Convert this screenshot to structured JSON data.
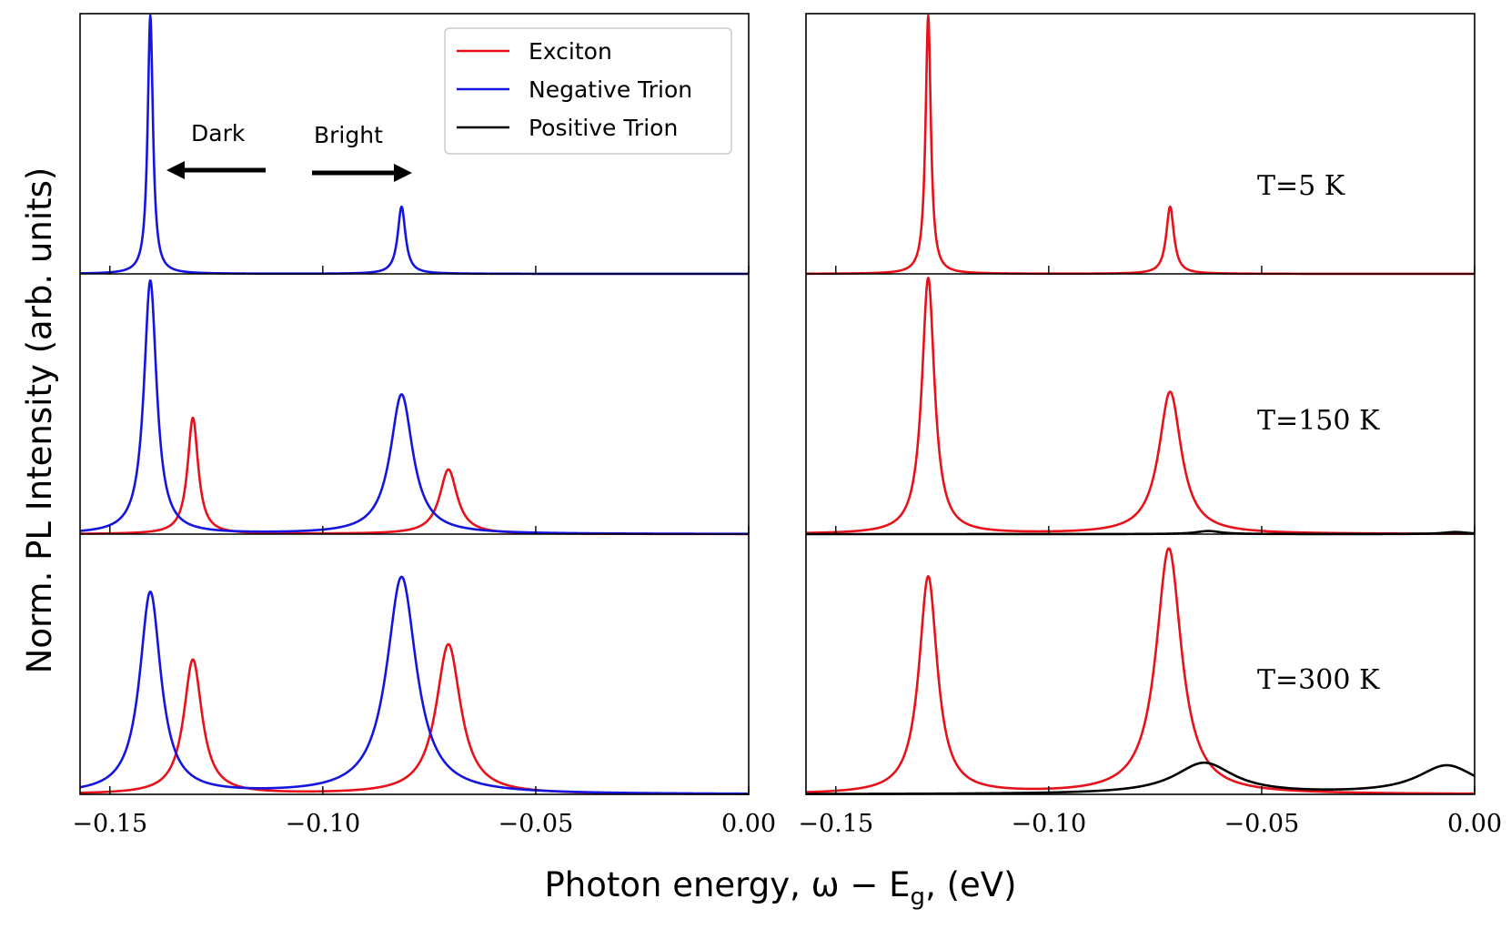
{
  "chart_data": {
    "type": "line",
    "xlabel": "Photon energy, ω − E",
    "xlabel_sub": "g",
    "xlabel_unit": ", (eV)",
    "ylabel": "Norm. PL Intensity (arb. units)",
    "xlim": [
      -0.157,
      0.0
    ],
    "x_ticks": [
      -0.15,
      -0.1,
      -0.05,
      0.0
    ],
    "x_tick_labels": [
      "−0.15",
      "−0.10",
      "−0.05",
      "0.00"
    ],
    "legend": {
      "position": "top-right of upper-left panel",
      "entries": [
        {
          "name": "Exciton",
          "color": "#e8111a"
        },
        {
          "name": "Negative Trion",
          "color": "#1515e0"
        },
        {
          "name": "Positive Trion",
          "color": "#000000"
        }
      ]
    },
    "annotations": [
      {
        "text": "Dark",
        "direction": "left"
      },
      {
        "text": "Bright",
        "direction": "right"
      }
    ],
    "temperatures": [
      {
        "label": "T=5 K"
      },
      {
        "label": "T=150 K"
      },
      {
        "label": "T=300 K"
      }
    ],
    "columns": [
      {
        "name": "left",
        "rows": [
          {
            "temperature": "T=5 K",
            "series": [
              {
                "name": "Negative Trion",
                "color": "#1515e0",
                "baseline": 0.0,
                "peaks": [
                  {
                    "x": -0.1405,
                    "amp": 1.0,
                    "gamma": 0.00075
                  },
                  {
                    "x": -0.0815,
                    "amp": 0.26,
                    "gamma": 0.0011
                  }
                ]
              }
            ]
          },
          {
            "temperature": "T=150 K",
            "series": [
              {
                "name": "Exciton",
                "color": "#e8111a",
                "baseline": 0.0,
                "peaks": [
                  {
                    "x": -0.1305,
                    "amp": 0.45,
                    "gamma": 0.0015
                  },
                  {
                    "x": -0.0705,
                    "amp": 0.25,
                    "gamma": 0.0025
                  }
                ]
              },
              {
                "name": "Negative Trion",
                "color": "#1515e0",
                "baseline": 0.0,
                "peaks": [
                  {
                    "x": -0.1405,
                    "amp": 0.98,
                    "gamma": 0.0018
                  },
                  {
                    "x": -0.0815,
                    "amp": 0.54,
                    "gamma": 0.0032
                  }
                ]
              }
            ]
          },
          {
            "temperature": "T=300 K",
            "series": [
              {
                "name": "Exciton",
                "color": "#e8111a",
                "baseline": 0.0,
                "peaks": [
                  {
                    "x": -0.1305,
                    "amp": 0.52,
                    "gamma": 0.0026
                  },
                  {
                    "x": -0.0705,
                    "amp": 0.58,
                    "gamma": 0.0035
                  }
                ]
              },
              {
                "name": "Negative Trion",
                "color": "#1515e0",
                "baseline": 0.0,
                "peaks": [
                  {
                    "x": -0.1405,
                    "amp": 0.78,
                    "gamma": 0.003
                  },
                  {
                    "x": -0.0815,
                    "amp": 0.84,
                    "gamma": 0.0042
                  }
                ]
              }
            ]
          }
        ]
      },
      {
        "name": "right",
        "rows": [
          {
            "temperature": "T=5 K",
            "series": [
              {
                "name": "Exciton",
                "color": "#e8111a",
                "baseline": 0.0,
                "peaks": [
                  {
                    "x": -0.1283,
                    "amp": 1.0,
                    "gamma": 0.00075
                  },
                  {
                    "x": -0.0715,
                    "amp": 0.26,
                    "gamma": 0.0011
                  }
                ]
              }
            ]
          },
          {
            "temperature": "T=150 K",
            "series": [
              {
                "name": "Exciton",
                "color": "#e8111a",
                "baseline": 0.0,
                "peaks": [
                  {
                    "x": -0.1283,
                    "amp": 0.99,
                    "gamma": 0.0018
                  },
                  {
                    "x": -0.0715,
                    "amp": 0.55,
                    "gamma": 0.0032
                  }
                ]
              },
              {
                "name": "Positive Trion",
                "color": "#000000",
                "baseline": 0.0,
                "peaks": [
                  {
                    "x": -0.0625,
                    "amp": 0.012,
                    "gamma": 0.0035
                  },
                  {
                    "x": -0.0045,
                    "amp": 0.008,
                    "gamma": 0.0035
                  }
                ]
              }
            ]
          },
          {
            "temperature": "T=300 K",
            "series": [
              {
                "name": "Exciton",
                "color": "#e8111a",
                "baseline": 0.0,
                "peaks": [
                  {
                    "x": -0.1283,
                    "amp": 0.84,
                    "gamma": 0.0026
                  },
                  {
                    "x": -0.0718,
                    "amp": 0.95,
                    "gamma": 0.0036
                  }
                ]
              },
              {
                "name": "Positive Trion",
                "color": "#000000",
                "baseline": 0.0,
                "peaks": [
                  {
                    "x": -0.0635,
                    "amp": 0.12,
                    "gamma": 0.0085
                  },
                  {
                    "x": -0.0065,
                    "amp": 0.11,
                    "gamma": 0.0085
                  }
                ]
              }
            ]
          }
        ]
      }
    ]
  }
}
